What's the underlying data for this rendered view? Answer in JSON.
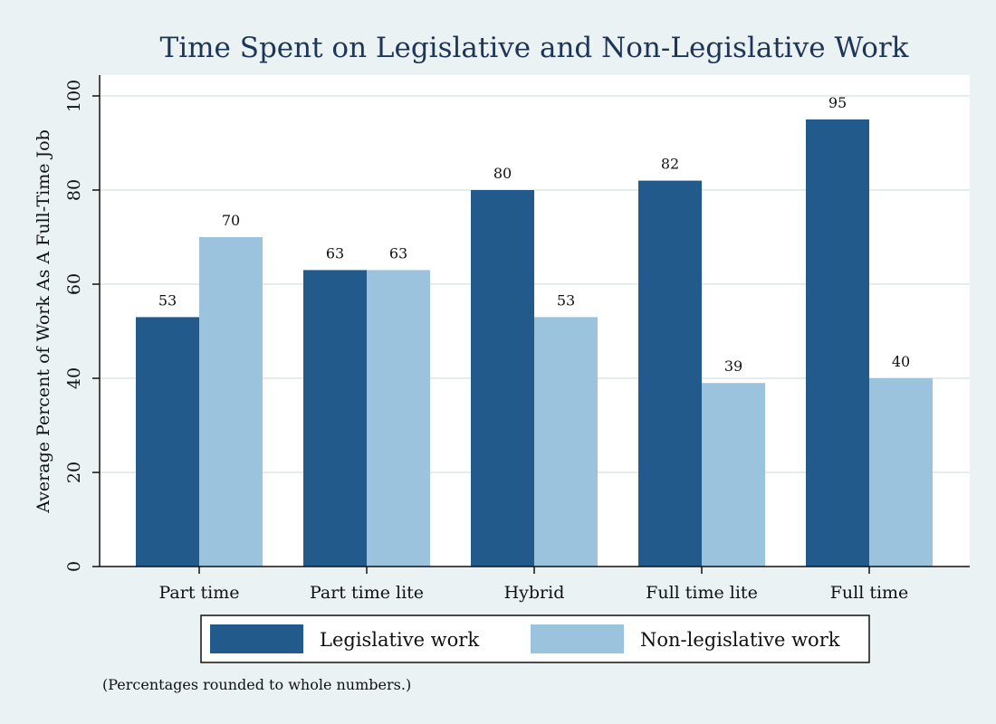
{
  "chart_data": {
    "type": "bar",
    "title": "Time Spent on Legislative and Non-Legislative Work",
    "xlabel": "",
    "ylabel": "Average Percent of Work As A Full-Time Job",
    "categories": [
      "Part time",
      "Part time lite",
      "Hybrid",
      "Full time lite",
      "Full time"
    ],
    "series": [
      {
        "name": "Legislative work",
        "values": [
          53,
          63,
          80,
          82,
          95
        ],
        "color": "#235a8c"
      },
      {
        "name": "Non-legislative work",
        "values": [
          70,
          63,
          53,
          39,
          40
        ],
        "color": "#9cc3de"
      }
    ],
    "ylim": [
      0,
      100
    ],
    "yticks": [
      0,
      20,
      40,
      60,
      80,
      100
    ],
    "grid": true,
    "legend_position": "bottom",
    "note": "(Percentages rounded to whole numbers.)"
  }
}
